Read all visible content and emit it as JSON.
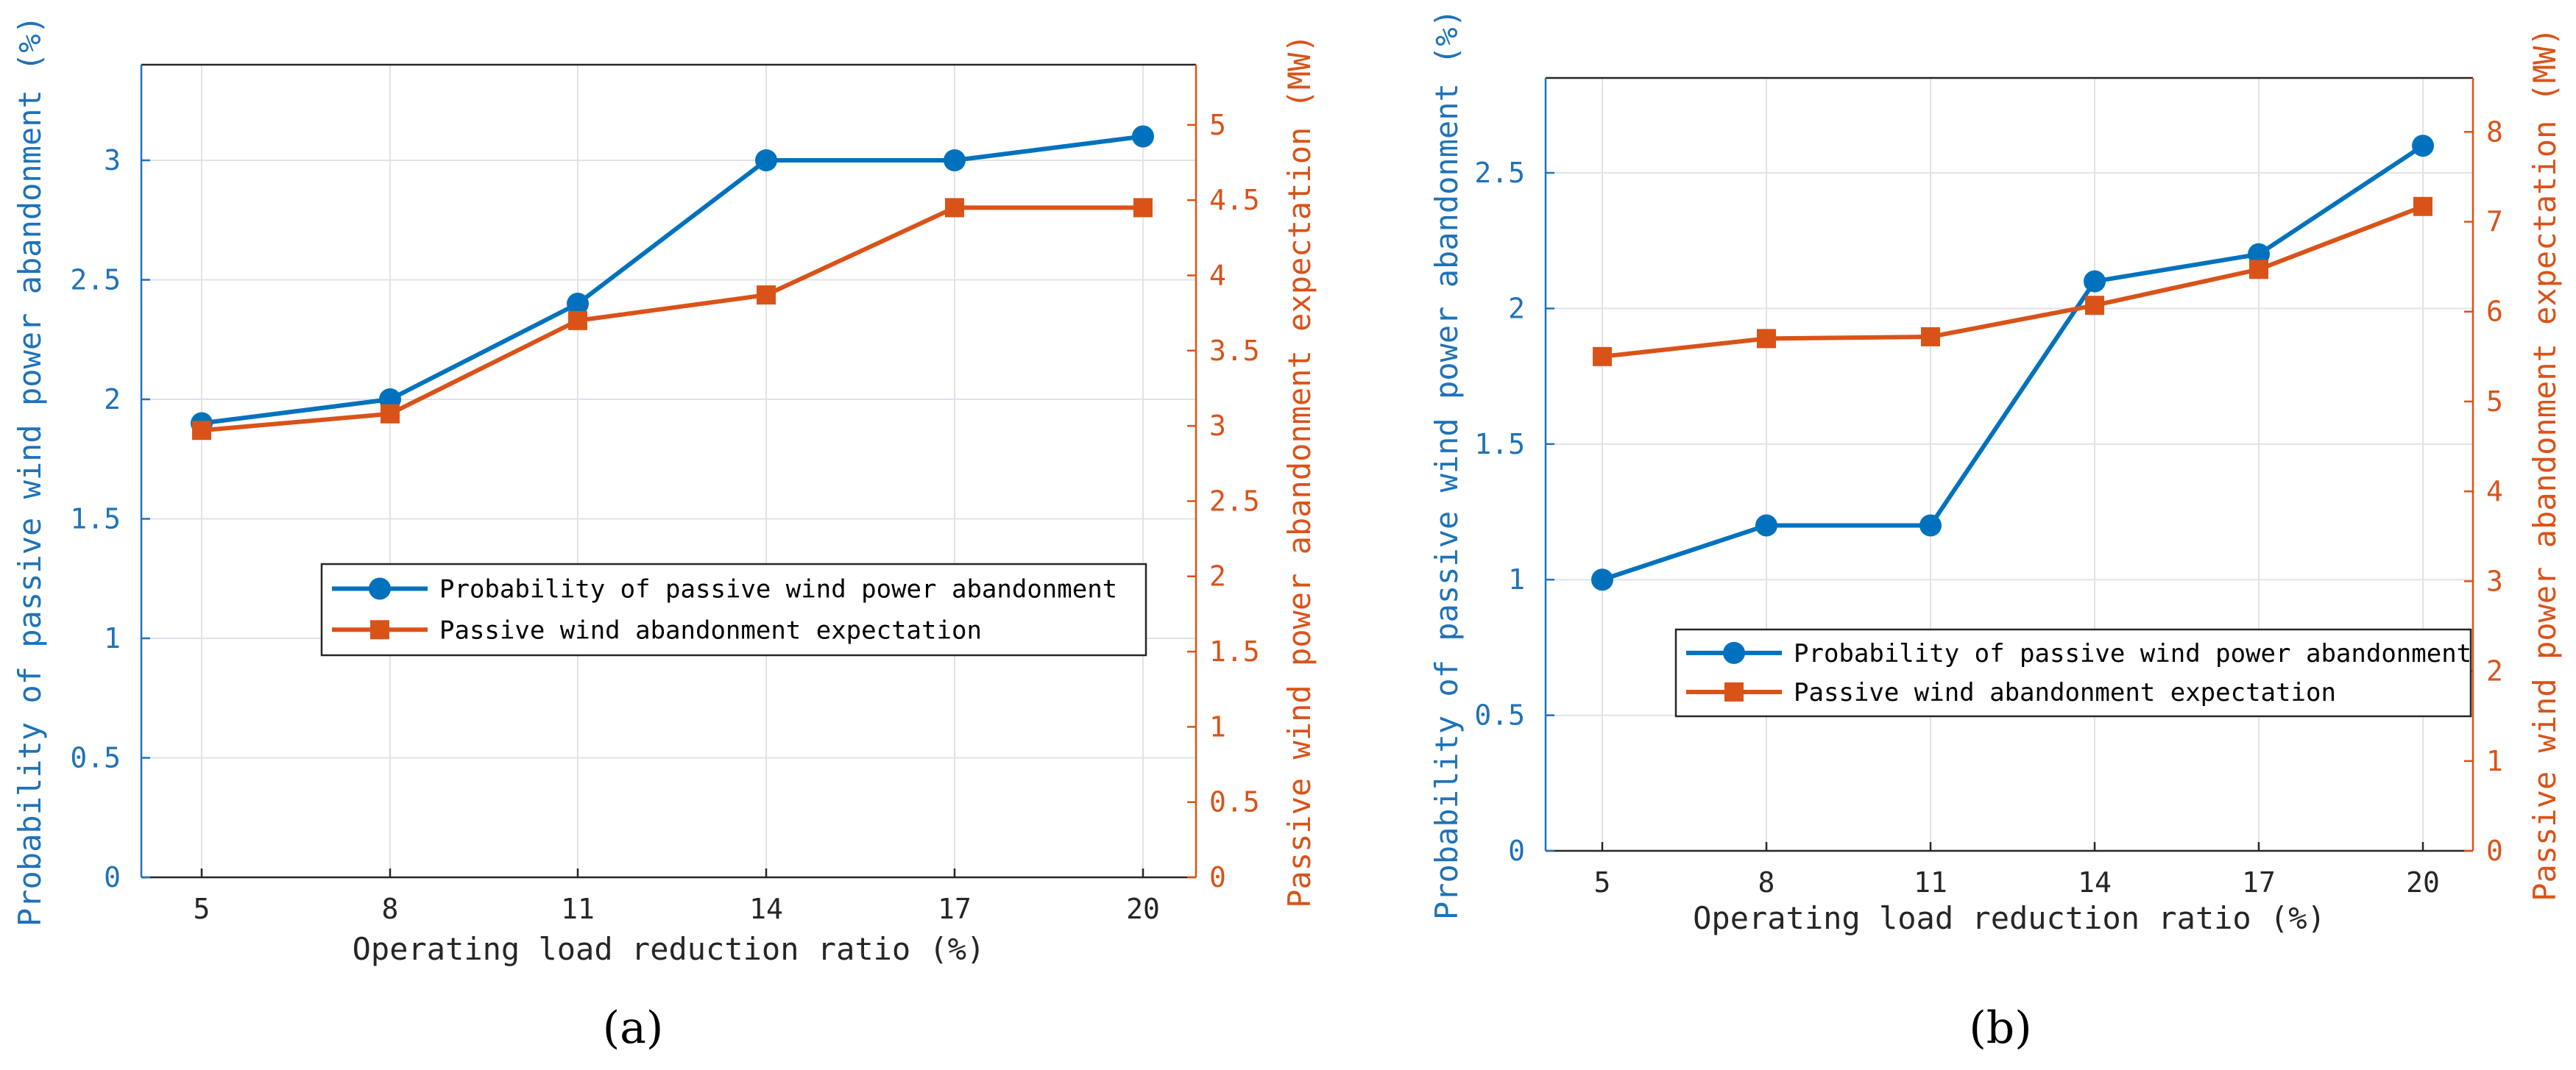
{
  "colors": {
    "left_axis": "#1f72b8",
    "right_axis": "#d95319",
    "probability_series": "#0072bd",
    "expectation_series": "#d95319"
  },
  "chart_data": [
    {
      "type": "line",
      "panel": "(a)",
      "xlabel": "Operating load reduction ratio (%)",
      "ylabel_left": "Probability of passive wind power abandonment (%)",
      "ylabel_right": "Passive wind power abandonment expectation (MW)",
      "categories": [
        "5",
        "8",
        "11",
        "14",
        "17",
        "20"
      ],
      "ylim_left": [
        0,
        3.4
      ],
      "yticks_left": [
        "0",
        "0.5",
        "1",
        "1.5",
        "2",
        "2.5",
        "3"
      ],
      "ylim_right": [
        0,
        5.4
      ],
      "yticks_right": [
        "0",
        "0.5",
        "1",
        "1.5",
        "2",
        "2.5",
        "3",
        "3.5",
        "4",
        "4.5",
        "5"
      ],
      "grid": true,
      "legend_position": "center-right",
      "series": [
        {
          "name": "Probability of passive wind power abandonment",
          "axis": "left",
          "marker": "circle",
          "values": [
            1.9,
            2.0,
            2.4,
            3.0,
            3.0,
            3.1
          ]
        },
        {
          "name": "Passive wind abandonment expectation",
          "axis": "right",
          "marker": "square",
          "values": [
            2.97,
            3.08,
            3.7,
            3.87,
            4.45,
            4.45
          ]
        }
      ]
    },
    {
      "type": "line",
      "panel": "(b)",
      "xlabel": "Operating load reduction ratio (%)",
      "ylabel_left": "Probability of passive wind power abandonment (%)",
      "ylabel_right": "Passive wind power abandonment expectation (MW)",
      "categories": [
        "5",
        "8",
        "11",
        "14",
        "17",
        "20"
      ],
      "ylim_left": [
        0,
        2.85
      ],
      "yticks_left": [
        "0",
        "0.5",
        "1",
        "1.5",
        "2",
        "2.5"
      ],
      "ylim_right": [
        0,
        8.6
      ],
      "yticks_right": [
        "0",
        "1",
        "2",
        "3",
        "4",
        "5",
        "6",
        "7",
        "8"
      ],
      "grid": true,
      "legend_position": "bottom-right",
      "series": [
        {
          "name": "Probability of passive wind power abandonment",
          "axis": "left",
          "marker": "circle",
          "values": [
            1.0,
            1.2,
            1.2,
            2.1,
            2.2,
            2.6
          ]
        },
        {
          "name": "Passive wind abandonment expectation",
          "axis": "right",
          "marker": "square",
          "values": [
            5.5,
            5.7,
            5.72,
            6.07,
            6.47,
            7.17
          ]
        }
      ]
    }
  ]
}
